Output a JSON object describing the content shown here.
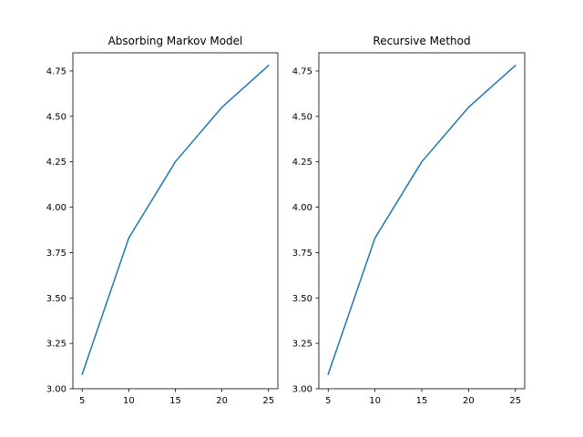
{
  "chart_data": [
    {
      "type": "line",
      "title": "Absorbing Markov Model",
      "xlabel": "",
      "ylabel": "",
      "x": [
        5,
        10,
        15,
        20,
        25
      ],
      "series": [
        {
          "values": [
            3.08,
            3.83,
            4.25,
            4.55,
            4.78
          ]
        }
      ],
      "xlim": [
        4.0,
        26.0
      ],
      "ylim": [
        3.0,
        4.85
      ],
      "xticks": [
        5,
        10,
        15,
        20,
        25
      ],
      "xtick_labels": [
        "5",
        "10",
        "15",
        "20",
        "25"
      ],
      "yticks": [
        3.0,
        3.25,
        3.5,
        3.75,
        4.0,
        4.25,
        4.5,
        4.75
      ],
      "ytick_labels": [
        "3.00",
        "3.25",
        "3.50",
        "3.75",
        "4.00",
        "4.25",
        "4.50",
        "4.75"
      ],
      "grid": false,
      "line_color": "#1f77b4"
    },
    {
      "type": "line",
      "title": "Recursive Method",
      "xlabel": "",
      "ylabel": "",
      "x": [
        5,
        10,
        15,
        20,
        25
      ],
      "series": [
        {
          "values": [
            3.08,
            3.83,
            4.25,
            4.55,
            4.78
          ]
        }
      ],
      "xlim": [
        4.0,
        26.0
      ],
      "ylim": [
        3.0,
        4.85
      ],
      "xticks": [
        5,
        10,
        15,
        20,
        25
      ],
      "xtick_labels": [
        "5",
        "10",
        "15",
        "20",
        "25"
      ],
      "yticks": [
        3.0,
        3.25,
        3.5,
        3.75,
        4.0,
        4.25,
        4.5,
        4.75
      ],
      "ytick_labels": [
        "3.00",
        "3.25",
        "3.50",
        "3.75",
        "4.00",
        "4.25",
        "4.50",
        "4.75"
      ],
      "grid": false,
      "line_color": "#1f77b4"
    }
  ]
}
